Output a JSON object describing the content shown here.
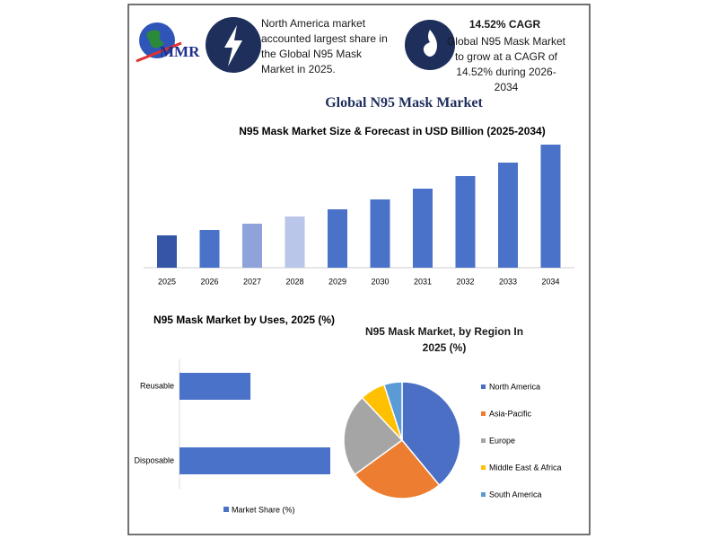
{
  "header": {
    "logo": "MMR",
    "fact1": "North America market accounted largest share in the Global N95 Mask Market in 2025.",
    "fact2_title": "14.52% CAGR",
    "fact2": "Global N95 Mask Market to grow at a CAGR of 14.52% during 2026-2034"
  },
  "title": "Global N95 Mask Market",
  "chart_data": [
    {
      "type": "bar",
      "title": "N95 Mask Market Size & Forecast in USD Billion (2025-2034)",
      "categories": [
        "2025",
        "2026",
        "2027",
        "2028",
        "2029",
        "2030",
        "2031",
        "2032",
        "2033",
        "2034"
      ],
      "values": [
        3.6,
        4.2,
        4.9,
        5.7,
        6.5,
        7.6,
        8.8,
        10.2,
        11.7,
        13.7
      ],
      "colors": [
        "#3556a6",
        "#4a72c8",
        "#8fa3da",
        "#b9c6ea",
        "#4a72c8",
        "#4a72c8",
        "#4a72c8",
        "#4a72c8",
        "#4a72c8",
        "#4a72c8"
      ]
    },
    {
      "type": "hbar",
      "title": "N95 Mask Market by Uses, 2025 (%)",
      "categories": [
        "Reusable",
        "Disposable"
      ],
      "series": [
        {
          "name": "Market Share (%)",
          "color": "#4a72c8",
          "values": [
            32,
            68
          ]
        }
      ]
    },
    {
      "type": "pie",
      "title": "N95 Mask Market, by Region In 2025 (%)",
      "categories": [
        "North America",
        "Asia-Pacific",
        "Europe",
        "Middle East & Africa",
        "South America"
      ],
      "values": [
        39,
        26,
        23,
        7,
        5
      ],
      "colors": [
        "#4a6fc4",
        "#ed7d31",
        "#a5a5a5",
        "#ffc000",
        "#5b9bd5"
      ]
    }
  ]
}
